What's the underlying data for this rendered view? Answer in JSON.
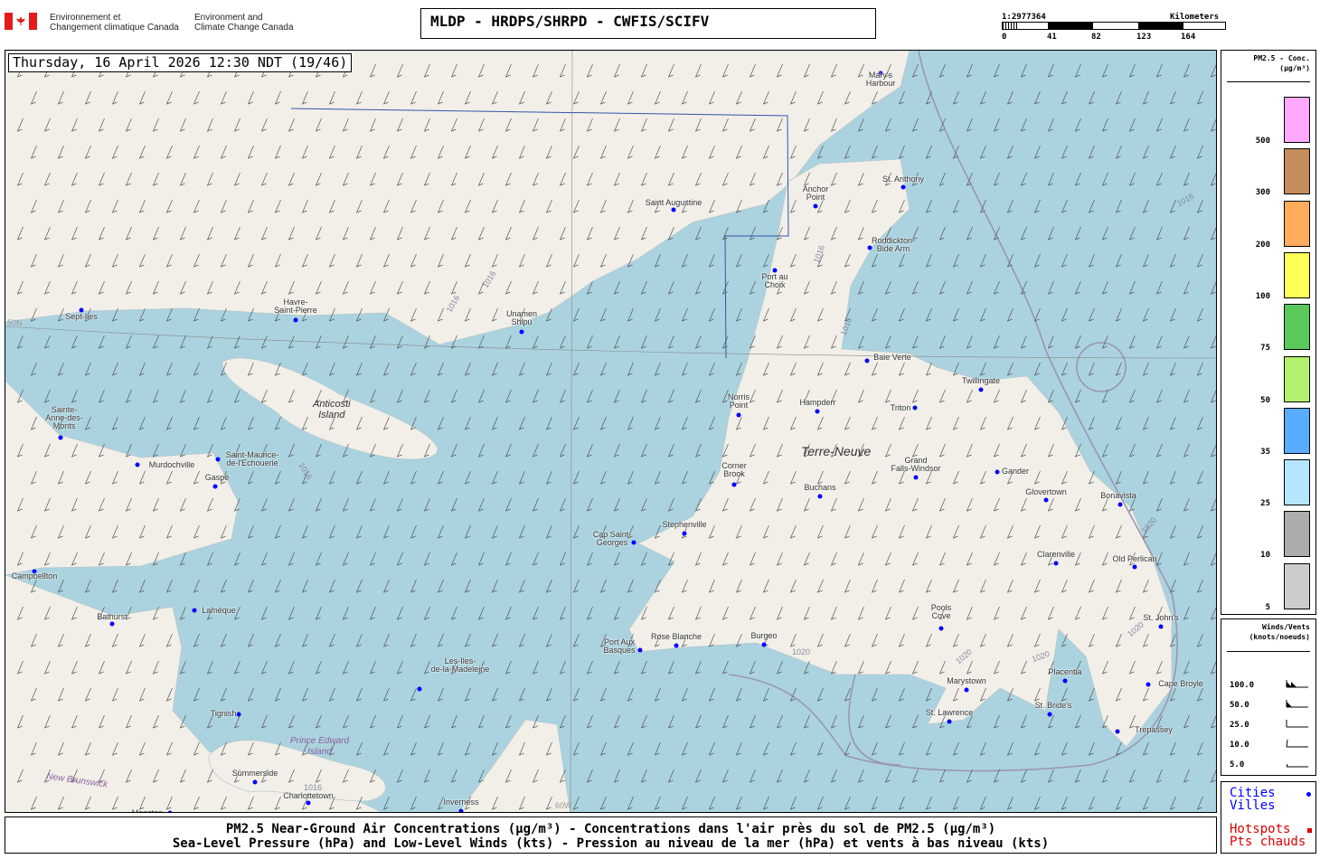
{
  "header": {
    "logo_fr": "Environnement et\nChangement climatique Canada",
    "logo_en": "Environment and\nClimate Change Canada",
    "title": "MLDP - HRDPS/SHRPD - CWFIS/SCIFV",
    "scale": {
      "ratio": "1:2977364",
      "unit": "Kilometers",
      "ticks": [
        "0",
        "41",
        "82",
        "123",
        "164"
      ]
    }
  },
  "map": {
    "datetime": "Thursday, 16 April 2026 12:30 NDT (19/46)",
    "cities": [
      "Mary's\nHarbour",
      "Saint Augustine",
      "Anchor\nPoint",
      "St. Anthony",
      "Roddickton-\nBide Arm",
      "Port au\nChoix",
      "Sept-Iles",
      "Havre-\nSaint-Pierre",
      "Unamen\nShipu",
      "Baie Verte",
      "Twillingate",
      "Norris\nPoint",
      "Hampden",
      "Triton",
      "Sainte-\nAnne-des-\nMonts",
      "Murdochville",
      "Saint-Maurice-\nde-l'Echouerie",
      "Gaspé",
      "Corner\nBrook",
      "Buchans",
      "Grand\nFalls-Windsor",
      "Gander",
      "Glovertown",
      "Bonavista",
      "Stephenville",
      "Cap Saint-\nGeorges",
      "Clarenville",
      "Old Perlican",
      "Campbellton",
      "Bathurst",
      "Lamèque",
      "Pools\nCove",
      "St. John's",
      "Port Aux\nBasques",
      "Rose Blanche",
      "Burgeo",
      "Les-Iles-\nde-la-Madeleine",
      "Marystown",
      "Placentia",
      "Cape Broyle",
      "Tignish",
      "St. Lawrence",
      "St. Bride's",
      "Trepassey",
      "Summerside",
      "Charlottetown",
      "Inverness",
      "Moncton"
    ],
    "regions": [
      "Anticosti\nIsland",
      "Terre-Neuve",
      "Prince Edward\nIsland",
      "New Brunswick"
    ],
    "isobar_labels": [
      "1016",
      "1016",
      "1016",
      "1016",
      "1016",
      "1016",
      "1020",
      "1020",
      "1020",
      "1020",
      "1020",
      "1016"
    ],
    "grid_labels": [
      "50N",
      "60W"
    ],
    "colors": {
      "water": "#aad3df",
      "land": "#f2efe9",
      "city_dot": "#0000ff",
      "isobar": "#8888a0"
    }
  },
  "legend": {
    "title": "PM2.5 - Conc.",
    "unit": "(µg/m³)",
    "bins": [
      {
        "label": "500",
        "color": "#ffa8ff"
      },
      {
        "label": "300",
        "color": "#c48c5c"
      },
      {
        "label": "200",
        "color": "#ffac5c"
      },
      {
        "label": "100",
        "color": "#ffff58"
      },
      {
        "label": "75",
        "color": "#5ac85a"
      },
      {
        "label": "50",
        "color": "#b4f070"
      },
      {
        "label": "35",
        "color": "#5aacff"
      },
      {
        "label": "25",
        "color": "#b4e6ff"
      },
      {
        "label": "10",
        "color": "#acacac"
      },
      {
        "label": "5",
        "color": "#cccccc"
      }
    ]
  },
  "winds": {
    "title": "Winds/Vents",
    "unit": "(knots/noeuds)",
    "speeds": [
      "100.0",
      "50.0",
      "25.0",
      "10.0",
      "5.0"
    ]
  },
  "keys": {
    "cities": "Cities",
    "villes": "Villes",
    "hotspots": "Hotspots",
    "pts_chauds": "Pts chauds",
    "city_color": "#0000ff",
    "hotspot_color": "#dd0000"
  },
  "footer": {
    "line1": "PM2.5 Near-Ground Air Concentrations (µg/m³) - Concentrations dans l'air près du sol de PM2.5 (µg/m³)",
    "line2": "Sea-Level Pressure (hPa) and Low-Level Winds (kts) - Pression au niveau de la mer (hPa) et vents à bas niveau (kts)"
  }
}
